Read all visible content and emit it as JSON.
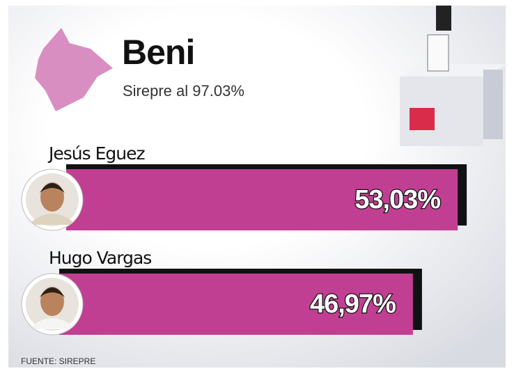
{
  "chart_data": {
    "type": "bar",
    "orientation": "horizontal",
    "title": "Beni",
    "subtitle": "Sirepre al 97.03%",
    "categories": [
      "Jesús Eguez",
      "Hugo Vargas"
    ],
    "values": [
      53.03,
      46.97
    ],
    "value_labels": [
      "53,03%",
      "46,97%"
    ],
    "color": "#c13f92",
    "source": "FUENTE: SIREPRE"
  }
}
